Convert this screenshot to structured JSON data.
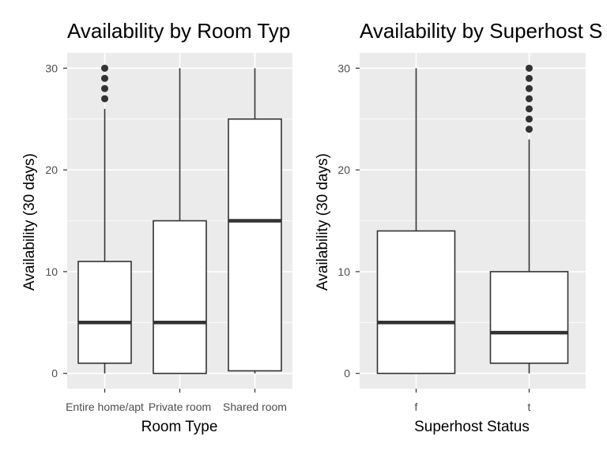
{
  "chart_data": [
    {
      "type": "boxplot",
      "title": "Availability by Room Typ",
      "xlabel": "Room Type",
      "ylabel": "Availability (30 days)",
      "ylim": [
        -1.5,
        31.5
      ],
      "yticks": [
        0,
        10,
        20,
        30
      ],
      "grid": true,
      "categories": [
        "Entire home/apt",
        "Private room",
        "Shared room"
      ],
      "boxes": [
        {
          "category": "Entire home/apt",
          "whisker_low": 0,
          "q1": 1,
          "median": 5,
          "q3": 11,
          "whisker_high": 26,
          "outliers": [
            27,
            28,
            29,
            30
          ]
        },
        {
          "category": "Private room",
          "whisker_low": 0,
          "q1": 0,
          "median": 5,
          "q3": 15,
          "whisker_high": 30,
          "outliers": []
        },
        {
          "category": "Shared room",
          "whisker_low": 0,
          "q1": 0.25,
          "median": 15,
          "q3": 25,
          "whisker_high": 30,
          "outliers": []
        }
      ]
    },
    {
      "type": "boxplot",
      "title": "Availability by Superhost S",
      "xlabel": "Superhost Status",
      "ylabel": "Availability (30 days)",
      "ylim": [
        -1.5,
        31.5
      ],
      "yticks": [
        0,
        10,
        20,
        30
      ],
      "grid": true,
      "categories": [
        "f",
        "t"
      ],
      "boxes": [
        {
          "category": "f",
          "whisker_low": 0,
          "q1": 0,
          "median": 5,
          "q3": 14,
          "whisker_high": 30,
          "outliers": []
        },
        {
          "category": "t",
          "whisker_low": 0,
          "q1": 1,
          "median": 4,
          "q3": 10,
          "whisker_high": 23,
          "outliers": [
            24,
            25,
            26,
            27,
            28,
            29,
            30
          ]
        }
      ]
    }
  ]
}
